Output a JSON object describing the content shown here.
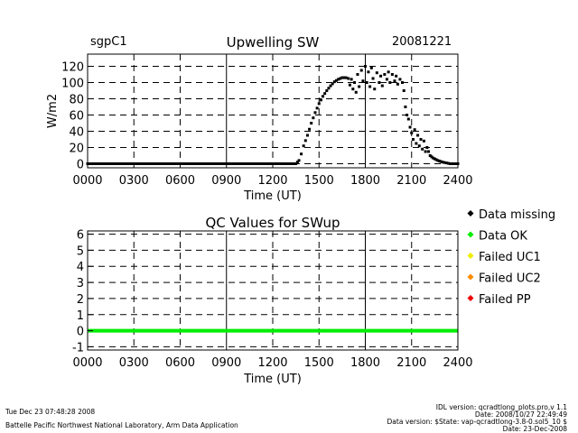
{
  "header": {
    "site": "sgpC1",
    "date": "20081221"
  },
  "footer": {
    "timestamp": "Tue Dec 23 07:48:28 2008",
    "lab": "Battelle Pacific Northwest National Laboratory, Arm Data Application",
    "idl_version": "IDL version: qcradtlong_plots.pro,v 1.1",
    "code_date": "Date: 2008/10/27 22:49:49",
    "data_version": "Data version: $State: vap-qcradtlong-3.8-0.sol5_10 $",
    "data_date": "Date: 23-Dec-2008"
  },
  "legend": [
    {
      "label": "Data missing",
      "color": "#000000"
    },
    {
      "label": "Data OK",
      "color": "#00ee00"
    },
    {
      "label": "Failed UC1",
      "color": "#eeee00"
    },
    {
      "label": "Failed UC2",
      "color": "#ff8c00"
    },
    {
      "label": "Failed PP",
      "color": "#ee0000"
    }
  ],
  "chart_data": [
    {
      "type": "scatter",
      "title": "Upwelling SW",
      "xlabel": "Time (UT)",
      "ylabel": "W/m2",
      "xlim": [
        0,
        24
      ],
      "ylim": [
        -5,
        135
      ],
      "x_ticks": [
        "0000",
        "0300",
        "0600",
        "0900",
        "1200",
        "1500",
        "1800",
        "2100",
        "2400"
      ],
      "y_ticks": [
        "0",
        "20",
        "40",
        "60",
        "80",
        "100",
        "120"
      ],
      "grid": true,
      "series": [
        {
          "color": "#000000",
          "points": [
            [
              0,
              0
            ],
            [
              1,
              0
            ],
            [
              2,
              0
            ],
            [
              3,
              0
            ],
            [
              4,
              0
            ],
            [
              5,
              0
            ],
            [
              6,
              0
            ],
            [
              7,
              0
            ],
            [
              8,
              0
            ],
            [
              9,
              0
            ],
            [
              10,
              0
            ],
            [
              11,
              0
            ],
            [
              12,
              0
            ],
            [
              13,
              0
            ],
            [
              13.5,
              0
            ],
            [
              13.7,
              4
            ],
            [
              13.85,
              12
            ],
            [
              14,
              22
            ],
            [
              14.25,
              35
            ],
            [
              14.5,
              50
            ],
            [
              14.75,
              63
            ],
            [
              15,
              74
            ],
            [
              15.25,
              83
            ],
            [
              15.5,
              90
            ],
            [
              15.75,
              96
            ],
            [
              16,
              101
            ],
            [
              16.25,
              104
            ],
            [
              16.5,
              106
            ],
            [
              16.75,
              106
            ],
            [
              16.9,
              105
            ],
            [
              17,
              97
            ],
            [
              17.1,
              104
            ],
            [
              17.2,
              92
            ],
            [
              17.3,
              100
            ],
            [
              17.4,
              88
            ],
            [
              17.5,
              110
            ],
            [
              17.6,
              95
            ],
            [
              17.75,
              115
            ],
            [
              17.85,
              102
            ],
            [
              18,
              120
            ],
            [
              18.1,
              100
            ],
            [
              18.2,
              113
            ],
            [
              18.3,
              95
            ],
            [
              18.4,
              118
            ],
            [
              18.5,
              105
            ],
            [
              18.6,
              92
            ],
            [
              18.75,
              112
            ],
            [
              18.9,
              100
            ],
            [
              19,
              108
            ],
            [
              19.1,
              96
            ],
            [
              19.25,
              110
            ],
            [
              19.4,
              104
            ],
            [
              19.5,
              113
            ],
            [
              19.6,
              100
            ],
            [
              19.75,
              110
            ],
            [
              19.9,
              102
            ],
            [
              20,
              108
            ],
            [
              20.1,
              98
            ],
            [
              20.25,
              104
            ],
            [
              20.4,
              100
            ],
            [
              20.5,
              90
            ],
            [
              20.6,
              70
            ],
            [
              20.7,
              60
            ],
            [
              20.8,
              55
            ],
            [
              20.9,
              45
            ],
            [
              21,
              38
            ],
            [
              21.1,
              30
            ],
            [
              21.2,
              42
            ],
            [
              21.3,
              25
            ],
            [
              21.4,
              35
            ],
            [
              21.5,
              22
            ],
            [
              21.6,
              30
            ],
            [
              21.7,
              18
            ],
            [
              21.8,
              28
            ],
            [
              21.9,
              15
            ],
            [
              22,
              20
            ],
            [
              22.2,
              10
            ],
            [
              22.4,
              7
            ],
            [
              22.7,
              4
            ],
            [
              23,
              2
            ],
            [
              23.5,
              0
            ],
            [
              24,
              0
            ]
          ]
        }
      ]
    },
    {
      "type": "line",
      "title": "QC Values for SWup",
      "xlabel": "Time (UT)",
      "xlim": [
        0,
        24
      ],
      "ylim": [
        -1.2,
        6.2
      ],
      "x_ticks": [
        "0000",
        "0300",
        "0600",
        "0900",
        "1200",
        "1500",
        "1800",
        "2100",
        "2400"
      ],
      "y_ticks": [
        "-1",
        "0",
        "1",
        "2",
        "3",
        "4",
        "5",
        "6"
      ],
      "grid": true,
      "series": [
        {
          "color": "#00ee00",
          "points": [
            [
              0,
              0
            ],
            [
              24,
              0
            ]
          ]
        }
      ]
    }
  ]
}
